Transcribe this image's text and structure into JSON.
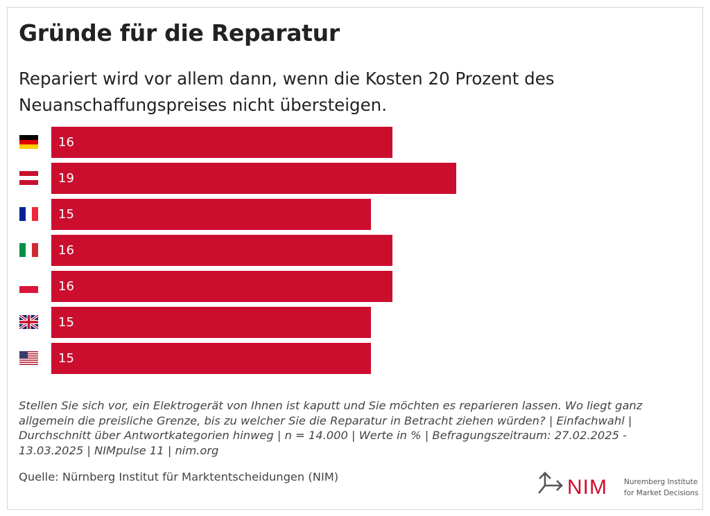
{
  "title": "Gründe für die Reparatur",
  "subtitle": "Repariert wird vor allem dann, wenn die Kosten 20 Prozent des Neuanschaffungspreises nicht übersteigen.",
  "chart_data": {
    "type": "bar",
    "orientation": "horizontal",
    "categories": [
      "flag-germany-icon",
      "flag-austria-icon",
      "flag-france-icon",
      "flag-italy-icon",
      "flag-poland-icon",
      "flag-uk-icon",
      "flag-usa-icon"
    ],
    "values": [
      16,
      19,
      15,
      16,
      16,
      15,
      15
    ],
    "bar_color": "#cc0e2e",
    "grid": false,
    "data_labels": true
  },
  "footnote": "Stellen Sie sich vor, ein Elektrogerät von Ihnen ist kaputt und Sie möchten es reparieren lassen. Wo liegt ganz allgemein die preisliche Grenze, bis zu welcher Sie die Reparatur in Betracht ziehen würden? | Einfachwahl | Durchschnitt über Antwortkategorien hinweg | n = 14.000 | Werte in % | Befragungszeitraum: 27.02.2025 - 13.03.2025 | NIMpulse 11 | nim.org",
  "source": "Quelle: Nürnberg Institut für Marktentscheidungen (NIM)",
  "logo": {
    "mark": "NIM",
    "line1": "Nuremberg Institute",
    "line2": "for Market Decisions",
    "color": "#cc0e2e"
  }
}
